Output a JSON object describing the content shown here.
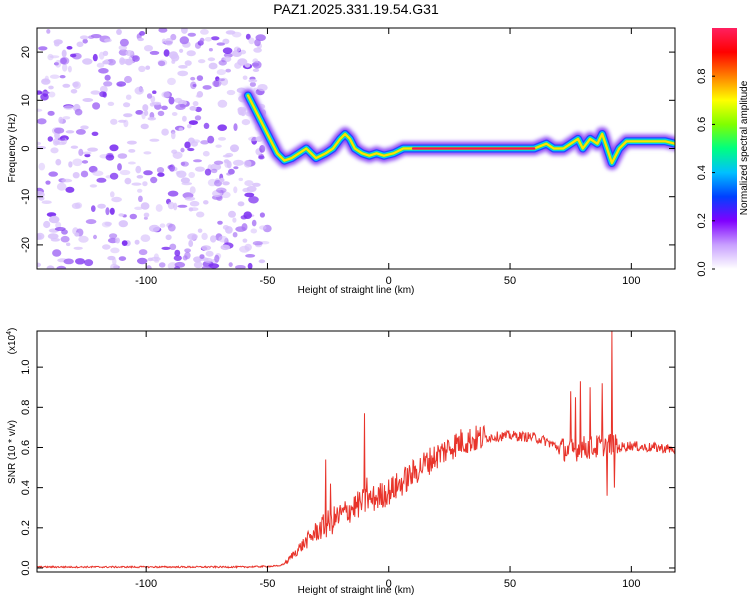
{
  "title": "PAZ1.2025.331.19.54.G31",
  "chart_data": [
    {
      "type": "heatmap",
      "name": "spectrogram",
      "xlabel": "Height of straight line (km)",
      "ylabel": "Frequency (Hz)",
      "xlim": [
        -145,
        118
      ],
      "ylim": [
        -25,
        25
      ],
      "x_ticks": [
        -100,
        -50,
        0,
        50,
        100
      ],
      "y_ticks": [
        -20,
        -10,
        0,
        10,
        20
      ],
      "noise_region_x": [
        -145,
        -50
      ],
      "ridge": {
        "x": [
          -58,
          -55,
          -52,
          -49,
          -46,
          -43,
          -40,
          -37,
          -34,
          -30,
          -26,
          -23,
          -20,
          -18,
          -16,
          -14,
          -11,
          -8,
          -5,
          -2,
          2,
          6,
          10,
          15,
          20,
          30,
          40,
          50,
          60,
          65,
          68,
          72,
          75,
          78,
          80,
          83,
          86,
          88,
          90,
          92,
          95,
          98,
          102,
          106,
          110,
          114,
          118
        ],
        "freq": [
          11,
          8,
          5,
          2,
          -1,
          -2.5,
          -2,
          -1,
          0,
          -2,
          -1,
          0,
          2,
          3,
          2,
          0,
          -1,
          -1.5,
          -1,
          -1.5,
          -1,
          0,
          0,
          0,
          0,
          0,
          0,
          0,
          0,
          1,
          0,
          0,
          1,
          2,
          0,
          2,
          1,
          3,
          0,
          -3,
          0,
          1.5,
          1.5,
          1.5,
          1.5,
          1.5,
          1
        ]
      },
      "colorbar": {
        "label": "Normalized spectral amplitude",
        "ticks": [
          "0.0",
          "0.2",
          "0.4",
          "0.6",
          "0.8"
        ],
        "tick_values": [
          0,
          0.2,
          0.4,
          0.6,
          0.8
        ],
        "range": [
          0,
          1
        ],
        "stops": [
          "#ffffff",
          "#c8a0ff",
          "#8000ff",
          "#0040ff",
          "#00c0ff",
          "#00ff80",
          "#80ff00",
          "#ffff00",
          "#ff8000",
          "#ff0000",
          "#ff2060"
        ]
      },
      "ridge_color": "#ff1050",
      "noise_color": "#9b5cf0"
    },
    {
      "type": "line",
      "name": "snr",
      "xlabel": "Height of straight line (km)",
      "ylabel": "SNR (10 * v/v)",
      "exponent_label": "(x10",
      "exponent_sup": "4",
      "exponent_close": ")",
      "xlim": [
        -145,
        118
      ],
      "ylim": [
        -0.02,
        1.18
      ],
      "x_ticks": [
        -100,
        -50,
        0,
        50,
        100
      ],
      "y_ticks": [
        0.0,
        0.2,
        0.4,
        0.6,
        0.8,
        1.0
      ],
      "y_tick_labels": [
        "0.0",
        "0.2",
        "0.4",
        "0.6",
        "0.8",
        "1.0"
      ],
      "color": "#e8342b",
      "envelope": {
        "x": [
          -145,
          -60,
          -50,
          -45,
          -42,
          -40,
          -35,
          -30,
          -25,
          -20,
          -15,
          -10,
          -5,
          0,
          5,
          10,
          15,
          20,
          25,
          30,
          40,
          50,
          60,
          65,
          70,
          75,
          80,
          85,
          90,
          95,
          100,
          105,
          110,
          118
        ],
        "y": [
          0.005,
          0.005,
          0.008,
          0.01,
          0.03,
          0.06,
          0.12,
          0.18,
          0.22,
          0.26,
          0.3,
          0.33,
          0.35,
          0.38,
          0.42,
          0.47,
          0.52,
          0.56,
          0.6,
          0.63,
          0.65,
          0.66,
          0.65,
          0.63,
          0.6,
          0.58,
          0.6,
          0.6,
          0.62,
          0.6,
          0.61,
          0.6,
          0.6,
          0.59
        ]
      },
      "spikes": [
        {
          "x": -26,
          "y": 0.54
        },
        {
          "x": -24,
          "y": 0.42
        },
        {
          "x": -10,
          "y": 0.77
        },
        {
          "x": -9,
          "y": 0.45
        },
        {
          "x": 75,
          "y": 0.88
        },
        {
          "x": 77,
          "y": 0.85
        },
        {
          "x": 79,
          "y": 0.93
        },
        {
          "x": 83,
          "y": 0.9
        },
        {
          "x": 88,
          "y": 0.92
        },
        {
          "x": 90,
          "y": 0.36
        },
        {
          "x": 92,
          "y": 1.18
        },
        {
          "x": 93,
          "y": 0.4
        }
      ]
    }
  ]
}
